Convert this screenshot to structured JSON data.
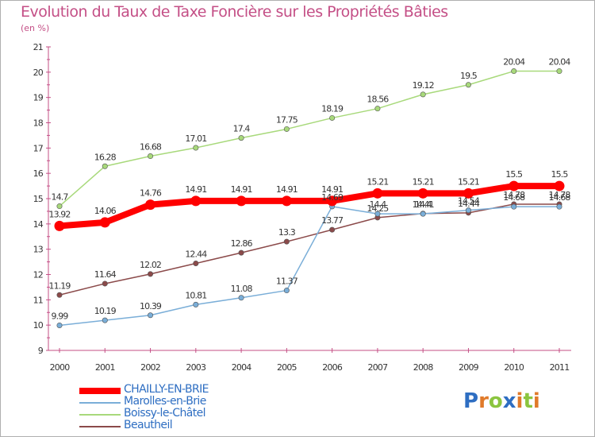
{
  "header": {
    "title": "Evolution du Taux de Taxe Foncière sur les Propriétés Bâties",
    "subtitle": "(en %)"
  },
  "logo": {
    "text": "Proxiti",
    "letters": [
      {
        "char": "P",
        "color": "#2e6ec2"
      },
      {
        "char": "r",
        "color": "#e07a2a"
      },
      {
        "char": "o",
        "color": "#8bc53f"
      },
      {
        "char": "x",
        "color": "#2e6ec2"
      },
      {
        "char": "i",
        "color": "#e07a2a"
      },
      {
        "char": "t",
        "color": "#8bc53f"
      },
      {
        "char": "i",
        "color": "#e07a2a"
      }
    ]
  },
  "chart_data": {
    "type": "line",
    "title": "Evolution du Taux de Taxe Foncière sur les Propriétés Bâties",
    "ylabel": "(en %)",
    "xlabel": "",
    "x": [
      "2000",
      "2001",
      "2002",
      "2003",
      "2004",
      "2005",
      "2006",
      "2007",
      "2008",
      "2009",
      "2010",
      "2011"
    ],
    "ylim": [
      9,
      21
    ],
    "yticks": [
      "9",
      "10",
      "11",
      "12",
      "13",
      "14",
      "15",
      "16",
      "17",
      "18",
      "19",
      "20",
      "21"
    ],
    "grid": false,
    "legend_position": "bottom-left",
    "series": [
      {
        "name": "CHAILLY-EN-BRIE",
        "color": "#ff0000",
        "width": 8,
        "values": [
          13.92,
          14.06,
          14.76,
          14.91,
          14.91,
          14.91,
          14.91,
          15.21,
          15.21,
          15.21,
          15.5,
          15.5
        ],
        "labels": [
          "13.92",
          "14.06",
          "14.76",
          "14.91",
          "14.91",
          "14.91",
          "14.91",
          "15.21",
          "15.21",
          "15.21",
          "15.5",
          "15.5"
        ]
      },
      {
        "name": "Marolles-en-Brie",
        "color": "#7aaed8",
        "width": 1.5,
        "values": [
          9.99,
          10.19,
          10.39,
          10.81,
          11.08,
          11.37,
          14.69,
          14.4,
          14.4,
          14.54,
          14.68,
          14.68
        ],
        "labels": [
          "9.99",
          "10.19",
          "10.39",
          "10.81",
          "11.08",
          "11.37",
          "14.69",
          "14.4",
          "14.4",
          "14.54",
          "14.68",
          "14.68"
        ]
      },
      {
        "name": "Boissy-le-Châtel",
        "color": "#a8d97b",
        "width": 1.5,
        "values": [
          14.7,
          16.28,
          16.68,
          17.01,
          17.4,
          17.75,
          18.19,
          18.56,
          19.12,
          19.5,
          20.04,
          20.04
        ],
        "labels": [
          "14.7",
          "16.28",
          "16.68",
          "17.01",
          "17.4",
          "17.75",
          "18.19",
          "18.56",
          "19.12",
          "19.5",
          "20.04",
          "20.04"
        ]
      },
      {
        "name": "Beautheil",
        "color": "#8b4a4a",
        "width": 1.5,
        "values": [
          11.19,
          11.64,
          12.02,
          12.44,
          12.86,
          13.3,
          13.77,
          14.25,
          14.41,
          14.44,
          14.78,
          14.78
        ],
        "labels": [
          "11.19",
          "11.64",
          "12.02",
          "12.44",
          "12.86",
          "13.3",
          "13.77",
          "14.25",
          "14.41",
          "14.44",
          "14.78",
          "14.78"
        ]
      }
    ]
  }
}
